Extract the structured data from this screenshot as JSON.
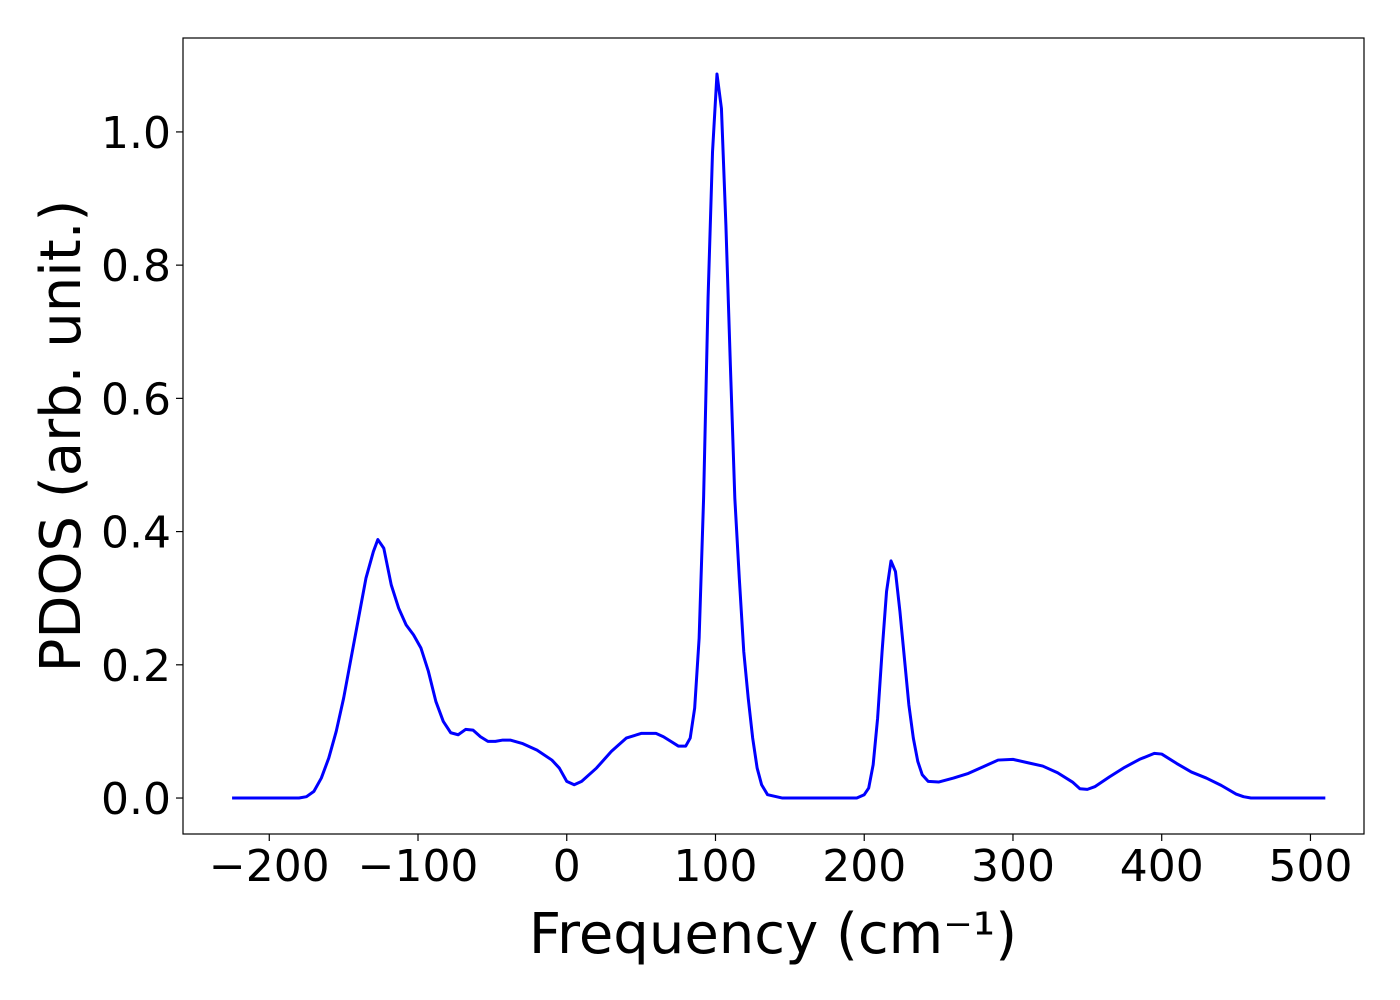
{
  "chart_data": {
    "type": "line",
    "xlabel": "Frequency (cm⁻¹)",
    "ylabel": "PDOS (arb. unit.)",
    "x": [
      -225,
      -180,
      -175,
      -170,
      -165,
      -160,
      -155,
      -150,
      -145,
      -140,
      -135,
      -130,
      -127,
      -123,
      -118,
      -113,
      -108,
      -103,
      -98,
      -93,
      -88,
      -83,
      -78,
      -73,
      -68,
      -63,
      -58,
      -53,
      -48,
      -43,
      -38,
      -30,
      -20,
      -10,
      -5,
      0,
      5,
      10,
      20,
      30,
      40,
      50,
      60,
      65,
      70,
      75,
      80,
      83,
      86,
      89,
      92,
      95,
      98,
      101,
      104,
      107,
      110,
      113,
      116,
      119,
      122,
      125,
      128,
      131,
      135,
      145,
      195,
      200,
      203,
      206,
      209,
      212,
      215,
      218,
      221,
      224,
      227,
      230,
      233,
      236,
      239,
      243,
      250,
      260,
      270,
      280,
      290,
      300,
      310,
      320,
      330,
      340,
      345,
      350,
      355,
      365,
      375,
      385,
      395,
      400,
      410,
      420,
      430,
      440,
      450,
      455,
      460,
      510
    ],
    "series": [
      {
        "color": "#0000ff",
        "values": [
          0,
          0,
          0.002,
          0.01,
          0.03,
          0.06,
          0.1,
          0.15,
          0.21,
          0.27,
          0.33,
          0.37,
          0.388,
          0.375,
          0.32,
          0.285,
          0.26,
          0.245,
          0.225,
          0.19,
          0.145,
          0.115,
          0.098,
          0.095,
          0.103,
          0.102,
          0.092,
          0.085,
          0.085,
          0.087,
          0.087,
          0.082,
          0.072,
          0.057,
          0.045,
          0.025,
          0.02,
          0.025,
          0.045,
          0.07,
          0.09,
          0.097,
          0.097,
          0.092,
          0.085,
          0.078,
          0.078,
          0.09,
          0.135,
          0.24,
          0.45,
          0.75,
          0.97,
          1.087,
          1.035,
          0.86,
          0.65,
          0.45,
          0.33,
          0.22,
          0.15,
          0.09,
          0.045,
          0.02,
          0.005,
          0,
          0,
          0.005,
          0.015,
          0.05,
          0.12,
          0.22,
          0.31,
          0.356,
          0.34,
          0.28,
          0.21,
          0.14,
          0.09,
          0.055,
          0.035,
          0.025,
          0.024,
          0.03,
          0.037,
          0.047,
          0.057,
          0.058,
          0.053,
          0.048,
          0.038,
          0.024,
          0.014,
          0.013,
          0.017,
          0.032,
          0.046,
          0.058,
          0.067,
          0.066,
          0.052,
          0.039,
          0.03,
          0.019,
          0.006,
          0.002,
          0,
          0
        ]
      }
    ],
    "xlim": [
      -258,
      536
    ],
    "ylim": [
      -0.054,
      1.141
    ],
    "xticks": [
      {
        "value": -200,
        "label": "−200"
      },
      {
        "value": -100,
        "label": "−100"
      },
      0,
      100,
      200,
      300,
      400,
      500
    ],
    "yticks": [
      {
        "value": 0,
        "label": "0.0"
      },
      0.2,
      0.4,
      0.6,
      0.8,
      {
        "value": 1,
        "label": "1.0"
      }
    ]
  }
}
